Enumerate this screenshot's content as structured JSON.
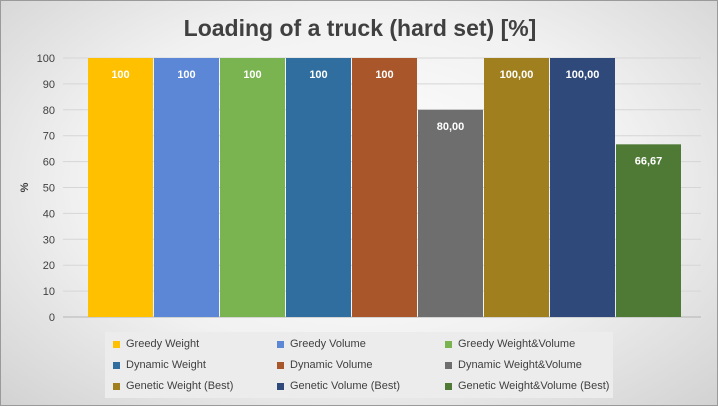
{
  "chart_data": {
    "type": "bar",
    "title": "Loading of a truck (hard set) [%]",
    "xlabel": "",
    "ylabel": "%",
    "ylim": [
      0,
      100
    ],
    "yticks": [
      0,
      10,
      20,
      30,
      40,
      50,
      60,
      70,
      80,
      90,
      100
    ],
    "grid": true,
    "legend_position": "bottom",
    "series": [
      {
        "name": "Greedy Weight",
        "value": 100,
        "label": "100",
        "color": "#ffc000"
      },
      {
        "name": "Greedy Volume",
        "value": 100,
        "label": "100",
        "color": "#5b87d6"
      },
      {
        "name": "Greedy Weight&Volume",
        "value": 100,
        "label": "100",
        "color": "#79b451"
      },
      {
        "name": "Dynamic Weight",
        "value": 100,
        "label": "100",
        "color": "#2f6e9f"
      },
      {
        "name": "Dynamic Volume",
        "value": 100,
        "label": "100",
        "color": "#a9562b"
      },
      {
        "name": "Dynamic Weight&Volume",
        "value": 80.0,
        "label": "80,00",
        "color": "#6e6e6e"
      },
      {
        "name": "Genetic Weight (Best)",
        "value": 100.0,
        "label": "100,00",
        "color": "#a07f1e"
      },
      {
        "name": "Genetic Volume (Best)",
        "value": 100.0,
        "label": "100,00",
        "color": "#2f4a7a"
      },
      {
        "name": "Genetic Weight&Volume (Best)",
        "value": 66.67,
        "label": "66,67",
        "color": "#4e7a36"
      }
    ]
  }
}
